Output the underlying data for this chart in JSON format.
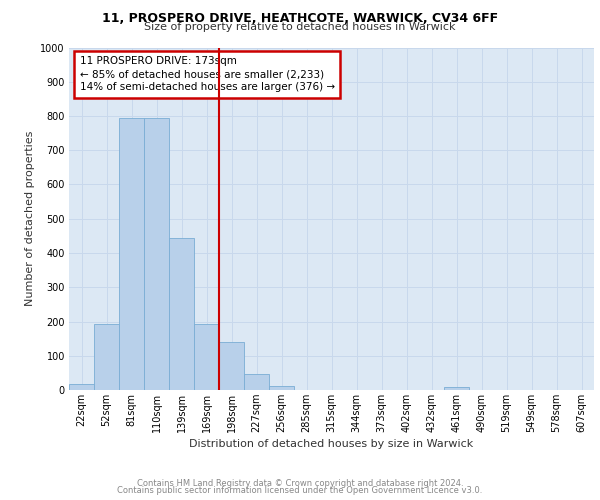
{
  "title1": "11, PROSPERO DRIVE, HEATHCOTE, WARWICK, CV34 6FF",
  "title2": "Size of property relative to detached houses in Warwick",
  "xlabel": "Distribution of detached houses by size in Warwick",
  "ylabel": "Number of detached properties",
  "footer1": "Contains HM Land Registry data © Crown copyright and database right 2024.",
  "footer2": "Contains public sector information licensed under the Open Government Licence v3.0.",
  "bar_labels": [
    "22sqm",
    "52sqm",
    "81sqm",
    "110sqm",
    "139sqm",
    "169sqm",
    "198sqm",
    "227sqm",
    "256sqm",
    "285sqm",
    "315sqm",
    "344sqm",
    "373sqm",
    "402sqm",
    "432sqm",
    "461sqm",
    "490sqm",
    "519sqm",
    "549sqm",
    "578sqm",
    "607sqm"
  ],
  "bar_values": [
    18,
    193,
    793,
    793,
    443,
    193,
    140,
    47,
    13,
    0,
    0,
    0,
    0,
    0,
    0,
    10,
    0,
    0,
    0,
    0,
    0
  ],
  "bar_color": "#b8d0ea",
  "bar_edge_color": "#7aadd4",
  "vline_x": 5.5,
  "vline_color": "#cc0000",
  "annotation_title": "11 PROSPERO DRIVE: 173sqm",
  "annotation_line1": "← 85% of detached houses are smaller (2,233)",
  "annotation_line2": "14% of semi-detached houses are larger (376) →",
  "annotation_box_edge_color": "#cc0000",
  "ylim": [
    0,
    1000
  ],
  "yticks": [
    0,
    100,
    200,
    300,
    400,
    500,
    600,
    700,
    800,
    900,
    1000
  ],
  "grid_color": "#c8d8ec",
  "background_color": "#dce8f4",
  "title_fontsize": 9,
  "subtitle_fontsize": 8,
  "axis_label_fontsize": 8,
  "tick_fontsize": 7,
  "footer_fontsize": 6,
  "annotation_fontsize": 7.5
}
